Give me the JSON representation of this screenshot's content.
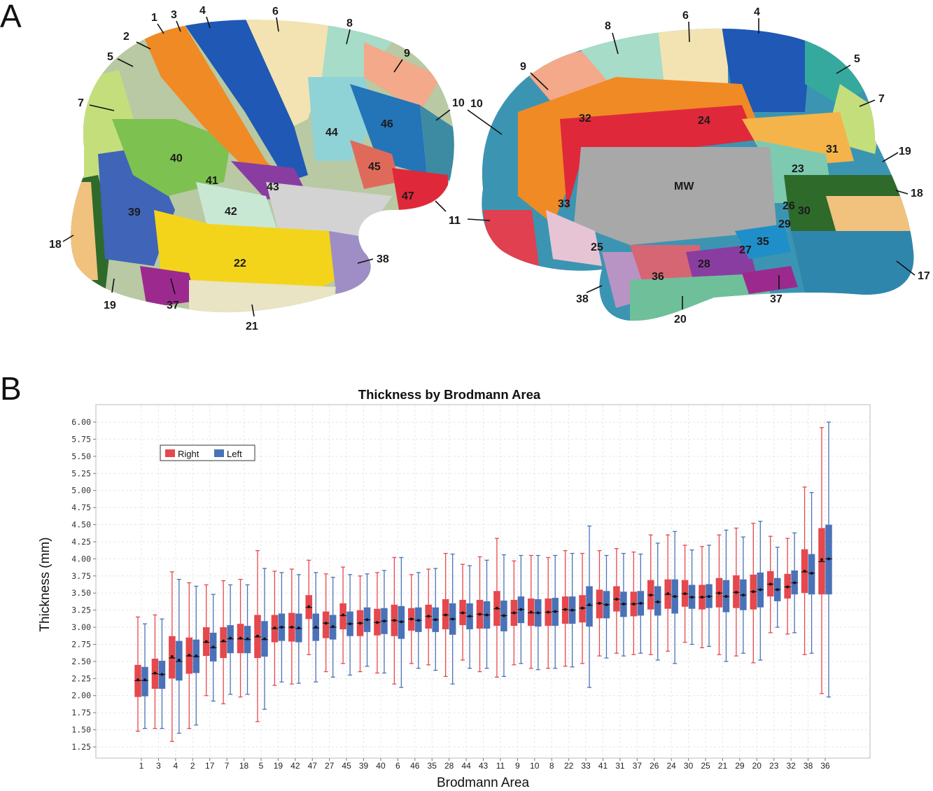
{
  "panels": {
    "a": "A",
    "b": "B"
  },
  "brain_figure": {
    "lateral_labels": [
      "1",
      "2",
      "3",
      "4",
      "5",
      "6",
      "7",
      "8",
      "9",
      "10",
      "11",
      "18",
      "19",
      "21",
      "22",
      "37",
      "38",
      "39",
      "40",
      "41",
      "42",
      "43",
      "44",
      "45",
      "46",
      "47"
    ],
    "medial_labels": [
      "4",
      "5",
      "6",
      "7",
      "8",
      "9",
      "10",
      "11",
      "17",
      "18",
      "19",
      "20",
      "23",
      "24",
      "25",
      "26",
      "27",
      "28",
      "29",
      "30",
      "31",
      "32",
      "33",
      "35",
      "36",
      "37",
      "38"
    ],
    "medial_center_label": "MW"
  },
  "chart_data": {
    "type": "box",
    "title": "Thickness by Brodmann Area",
    "xlabel": "Brodmann Area",
    "ylabel": "Thickness (mm)",
    "ylim": [
      1.1,
      6.25
    ],
    "yticks": [
      "1.25",
      "1.50",
      "1.75",
      "2.00",
      "2.25",
      "2.50",
      "2.75",
      "3.00",
      "3.25",
      "3.50",
      "3.75",
      "4.00",
      "4.25",
      "4.50",
      "4.75",
      "5.00",
      "5.25",
      "5.50",
      "5.75",
      "6.00"
    ],
    "grid": true,
    "legend_position": "top-left",
    "categories": [
      "1",
      "3",
      "4",
      "2",
      "17",
      "7",
      "18",
      "5",
      "19",
      "42",
      "47",
      "27",
      "45",
      "39",
      "40",
      "6",
      "46",
      "35",
      "28",
      "44",
      "43",
      "11",
      "9",
      "10",
      "8",
      "22",
      "33",
      "41",
      "31",
      "37",
      "26",
      "24",
      "30",
      "25",
      "21",
      "29",
      "20",
      "23",
      "32",
      "38",
      "36"
    ],
    "series": [
      {
        "name": "Right",
        "color": "#e5484d",
        "boxes": [
          {
            "min": 1.48,
            "q1": 1.98,
            "median": 2.22,
            "mean": 2.23,
            "q3": 2.45,
            "max": 3.15
          },
          {
            "min": 1.52,
            "q1": 2.1,
            "median": 2.32,
            "mean": 2.33,
            "q3": 2.54,
            "max": 3.18
          },
          {
            "min": 1.33,
            "q1": 2.25,
            "median": 2.55,
            "mean": 2.57,
            "q3": 2.87,
            "max": 3.81
          },
          {
            "min": 1.52,
            "q1": 2.32,
            "median": 2.58,
            "mean": 2.59,
            "q3": 2.85,
            "max": 3.65
          },
          {
            "min": 2.0,
            "q1": 2.58,
            "median": 2.78,
            "mean": 2.79,
            "q3": 3.0,
            "max": 3.62
          },
          {
            "min": 1.88,
            "q1": 2.55,
            "median": 2.79,
            "mean": 2.8,
            "q3": 3.0,
            "max": 3.68
          },
          {
            "min": 1.98,
            "q1": 2.62,
            "median": 2.83,
            "mean": 2.84,
            "q3": 3.05,
            "max": 3.7
          },
          {
            "min": 1.62,
            "q1": 2.55,
            "median": 2.86,
            "mean": 2.87,
            "q3": 3.18,
            "max": 4.12
          },
          {
            "min": 2.15,
            "q1": 2.78,
            "median": 2.98,
            "mean": 2.99,
            "q3": 3.18,
            "max": 3.82
          },
          {
            "min": 2.17,
            "q1": 2.79,
            "median": 3.0,
            "mean": 3.0,
            "q3": 3.21,
            "max": 3.85
          },
          {
            "min": 2.6,
            "q1": 3.12,
            "median": 3.29,
            "mean": 3.3,
            "q3": 3.47,
            "max": 3.98
          },
          {
            "min": 2.35,
            "q1": 2.84,
            "median": 3.06,
            "mean": 3.06,
            "q3": 3.23,
            "max": 3.78
          },
          {
            "min": 2.47,
            "q1": 2.97,
            "median": 3.17,
            "mean": 3.18,
            "q3": 3.35,
            "max": 3.88
          },
          {
            "min": 2.35,
            "q1": 2.87,
            "median": 3.06,
            "mean": 3.06,
            "q3": 3.25,
            "max": 3.75
          },
          {
            "min": 2.33,
            "q1": 2.88,
            "median": 3.07,
            "mean": 3.07,
            "q3": 3.27,
            "max": 3.8
          },
          {
            "min": 2.17,
            "q1": 2.87,
            "median": 3.1,
            "mean": 3.1,
            "q3": 3.33,
            "max": 4.02
          },
          {
            "min": 2.47,
            "q1": 2.95,
            "median": 3.12,
            "mean": 3.12,
            "q3": 3.28,
            "max": 3.77
          },
          {
            "min": 2.45,
            "q1": 2.98,
            "median": 3.16,
            "mean": 3.16,
            "q3": 3.33,
            "max": 3.85
          },
          {
            "min": 2.28,
            "q1": 2.97,
            "median": 3.18,
            "mean": 3.18,
            "q3": 3.41,
            "max": 4.08
          },
          {
            "min": 2.52,
            "q1": 3.03,
            "median": 3.21,
            "mean": 3.21,
            "q3": 3.4,
            "max": 3.92
          },
          {
            "min": 2.35,
            "q1": 2.98,
            "median": 3.19,
            "mean": 3.19,
            "q3": 3.4,
            "max": 4.03
          },
          {
            "min": 2.27,
            "q1": 3.02,
            "median": 3.27,
            "mean": 3.28,
            "q3": 3.53,
            "max": 4.3
          },
          {
            "min": 2.45,
            "q1": 3.02,
            "median": 3.21,
            "mean": 3.21,
            "q3": 3.4,
            "max": 3.97
          },
          {
            "min": 2.4,
            "q1": 3.02,
            "median": 3.21,
            "mean": 3.22,
            "q3": 3.42,
            "max": 4.05
          },
          {
            "min": 2.4,
            "q1": 3.02,
            "median": 3.22,
            "mean": 3.22,
            "q3": 3.42,
            "max": 4.02
          },
          {
            "min": 2.43,
            "q1": 3.05,
            "median": 3.26,
            "mean": 3.26,
            "q3": 3.45,
            "max": 4.12
          },
          {
            "min": 2.47,
            "q1": 3.07,
            "median": 3.28,
            "mean": 3.28,
            "q3": 3.47,
            "max": 4.08
          },
          {
            "min": 2.58,
            "q1": 3.13,
            "median": 3.35,
            "mean": 3.35,
            "q3": 3.55,
            "max": 4.12
          },
          {
            "min": 2.62,
            "q1": 3.23,
            "median": 3.41,
            "mean": 3.41,
            "q3": 3.6,
            "max": 4.15
          },
          {
            "min": 2.6,
            "q1": 3.16,
            "median": 3.34,
            "mean": 3.34,
            "q3": 3.52,
            "max": 4.1
          },
          {
            "min": 2.6,
            "q1": 3.26,
            "median": 3.47,
            "mean": 3.47,
            "q3": 3.69,
            "max": 4.35
          },
          {
            "min": 2.65,
            "q1": 3.27,
            "median": 3.48,
            "mean": 3.49,
            "q3": 3.7,
            "max": 4.35
          },
          {
            "min": 2.78,
            "q1": 3.3,
            "median": 3.49,
            "mean": 3.49,
            "q3": 3.69,
            "max": 4.2
          },
          {
            "min": 2.7,
            "q1": 3.26,
            "median": 3.44,
            "mean": 3.44,
            "q3": 3.62,
            "max": 4.18
          },
          {
            "min": 2.6,
            "q1": 3.29,
            "median": 3.5,
            "mean": 3.5,
            "q3": 3.72,
            "max": 4.35
          },
          {
            "min": 2.58,
            "q1": 3.28,
            "median": 3.51,
            "mean": 3.51,
            "q3": 3.76,
            "max": 4.45
          },
          {
            "min": 2.48,
            "q1": 3.26,
            "median": 3.52,
            "mean": 3.52,
            "q3": 3.77,
            "max": 4.52
          },
          {
            "min": 2.92,
            "q1": 3.45,
            "median": 3.63,
            "mean": 3.63,
            "q3": 3.82,
            "max": 4.33
          },
          {
            "min": 2.9,
            "q1": 3.42,
            "median": 3.59,
            "mean": 3.59,
            "q3": 3.78,
            "max": 4.3
          },
          {
            "min": 2.6,
            "q1": 3.5,
            "median": 3.81,
            "mean": 3.82,
            "q3": 4.14,
            "max": 5.05
          },
          {
            "min": 2.03,
            "q1": 3.48,
            "median": 3.96,
            "mean": 3.99,
            "q3": 4.45,
            "max": 5.92
          }
        ]
      },
      {
        "name": "Left",
        "color": "#4a72b8",
        "boxes": [
          {
            "min": 1.52,
            "q1": 1.99,
            "median": 2.22,
            "mean": 2.23,
            "q3": 2.42,
            "max": 3.05
          },
          {
            "min": 1.52,
            "q1": 2.1,
            "median": 2.31,
            "mean": 2.31,
            "q3": 2.51,
            "max": 3.12
          },
          {
            "min": 1.45,
            "q1": 2.22,
            "median": 2.5,
            "mean": 2.52,
            "q3": 2.8,
            "max": 3.7
          },
          {
            "min": 1.57,
            "q1": 2.33,
            "median": 2.57,
            "mean": 2.58,
            "q3": 2.82,
            "max": 3.6
          },
          {
            "min": 1.92,
            "q1": 2.5,
            "median": 2.7,
            "mean": 2.71,
            "q3": 2.92,
            "max": 3.48
          },
          {
            "min": 2.02,
            "q1": 2.62,
            "median": 2.83,
            "mean": 2.84,
            "q3": 3.03,
            "max": 3.62
          },
          {
            "min": 2.02,
            "q1": 2.62,
            "median": 2.82,
            "mean": 2.83,
            "q3": 3.02,
            "max": 3.62
          },
          {
            "min": 1.8,
            "q1": 2.57,
            "median": 2.82,
            "mean": 2.83,
            "q3": 3.09,
            "max": 3.86
          },
          {
            "min": 2.2,
            "q1": 2.8,
            "median": 3.0,
            "mean": 3.0,
            "q3": 3.2,
            "max": 3.8
          },
          {
            "min": 2.18,
            "q1": 2.78,
            "median": 2.98,
            "mean": 2.99,
            "q3": 3.2,
            "max": 3.77
          },
          {
            "min": 2.2,
            "q1": 2.8,
            "median": 2.99,
            "mean": 3.0,
            "q3": 3.2,
            "max": 3.8
          },
          {
            "min": 2.27,
            "q1": 2.82,
            "median": 3.0,
            "mean": 3.01,
            "q3": 3.18,
            "max": 3.73
          },
          {
            "min": 2.3,
            "q1": 2.87,
            "median": 3.05,
            "mean": 3.05,
            "q3": 3.23,
            "max": 3.77
          },
          {
            "min": 2.43,
            "q1": 2.93,
            "median": 3.11,
            "mean": 3.11,
            "q3": 3.29,
            "max": 3.78
          },
          {
            "min": 2.33,
            "q1": 2.9,
            "median": 3.09,
            "mean": 3.09,
            "q3": 3.28,
            "max": 3.83
          },
          {
            "min": 2.12,
            "q1": 2.83,
            "median": 3.08,
            "mean": 3.08,
            "q3": 3.31,
            "max": 4.02
          },
          {
            "min": 2.4,
            "q1": 2.93,
            "median": 3.1,
            "mean": 3.1,
            "q3": 3.29,
            "max": 3.8
          },
          {
            "min": 2.37,
            "q1": 2.93,
            "median": 3.11,
            "mean": 3.11,
            "q3": 3.29,
            "max": 3.86
          },
          {
            "min": 2.17,
            "q1": 2.89,
            "median": 3.12,
            "mean": 3.12,
            "q3": 3.35,
            "max": 4.07
          },
          {
            "min": 2.4,
            "q1": 2.97,
            "median": 3.16,
            "mean": 3.16,
            "q3": 3.35,
            "max": 3.9
          },
          {
            "min": 2.4,
            "q1": 2.98,
            "median": 3.18,
            "mean": 3.18,
            "q3": 3.38,
            "max": 3.98
          },
          {
            "min": 2.28,
            "q1": 2.94,
            "median": 3.17,
            "mean": 3.17,
            "q3": 3.39,
            "max": 4.06
          },
          {
            "min": 2.47,
            "q1": 3.06,
            "median": 3.26,
            "mean": 3.26,
            "q3": 3.45,
            "max": 4.05
          },
          {
            "min": 2.38,
            "q1": 3.01,
            "median": 3.21,
            "mean": 3.21,
            "q3": 3.41,
            "max": 4.05
          },
          {
            "min": 2.4,
            "q1": 3.02,
            "median": 3.23,
            "mean": 3.23,
            "q3": 3.43,
            "max": 4.05
          },
          {
            "min": 2.42,
            "q1": 3.05,
            "median": 3.25,
            "mean": 3.25,
            "q3": 3.45,
            "max": 4.08
          },
          {
            "min": 2.12,
            "q1": 3.01,
            "median": 3.32,
            "mean": 3.33,
            "q3": 3.6,
            "max": 4.48
          },
          {
            "min": 2.55,
            "q1": 3.13,
            "median": 3.33,
            "mean": 3.33,
            "q3": 3.53,
            "max": 4.05
          },
          {
            "min": 2.58,
            "q1": 3.15,
            "median": 3.34,
            "mean": 3.34,
            "q3": 3.52,
            "max": 4.08
          },
          {
            "min": 2.62,
            "q1": 3.17,
            "median": 3.35,
            "mean": 3.35,
            "q3": 3.53,
            "max": 4.07
          },
          {
            "min": 2.52,
            "q1": 3.17,
            "median": 3.37,
            "mean": 3.37,
            "q3": 3.6,
            "max": 4.23
          },
          {
            "min": 2.47,
            "q1": 3.2,
            "median": 3.45,
            "mean": 3.45,
            "q3": 3.7,
            "max": 4.4
          },
          {
            "min": 2.75,
            "q1": 3.27,
            "median": 3.44,
            "mean": 3.44,
            "q3": 3.62,
            "max": 4.13
          },
          {
            "min": 2.72,
            "q1": 3.28,
            "median": 3.45,
            "mean": 3.45,
            "q3": 3.63,
            "max": 4.2
          },
          {
            "min": 2.5,
            "q1": 3.22,
            "median": 3.45,
            "mean": 3.45,
            "q3": 3.69,
            "max": 4.42
          },
          {
            "min": 2.62,
            "q1": 3.25,
            "median": 3.47,
            "mean": 3.47,
            "q3": 3.7,
            "max": 4.32
          },
          {
            "min": 2.52,
            "q1": 3.29,
            "median": 3.55,
            "mean": 3.55,
            "q3": 3.8,
            "max": 4.55
          },
          {
            "min": 3.0,
            "q1": 3.38,
            "median": 3.55,
            "mean": 3.55,
            "q3": 3.72,
            "max": 4.17
          },
          {
            "min": 2.92,
            "q1": 3.48,
            "median": 3.65,
            "mean": 3.65,
            "q3": 3.83,
            "max": 4.38
          },
          {
            "min": 2.62,
            "q1": 3.48,
            "median": 3.79,
            "mean": 3.79,
            "q3": 4.07,
            "max": 4.97
          },
          {
            "min": 1.98,
            "q1": 3.48,
            "median": 4.0,
            "mean": 4.0,
            "q3": 4.5,
            "max": 6.0
          }
        ]
      }
    ]
  }
}
